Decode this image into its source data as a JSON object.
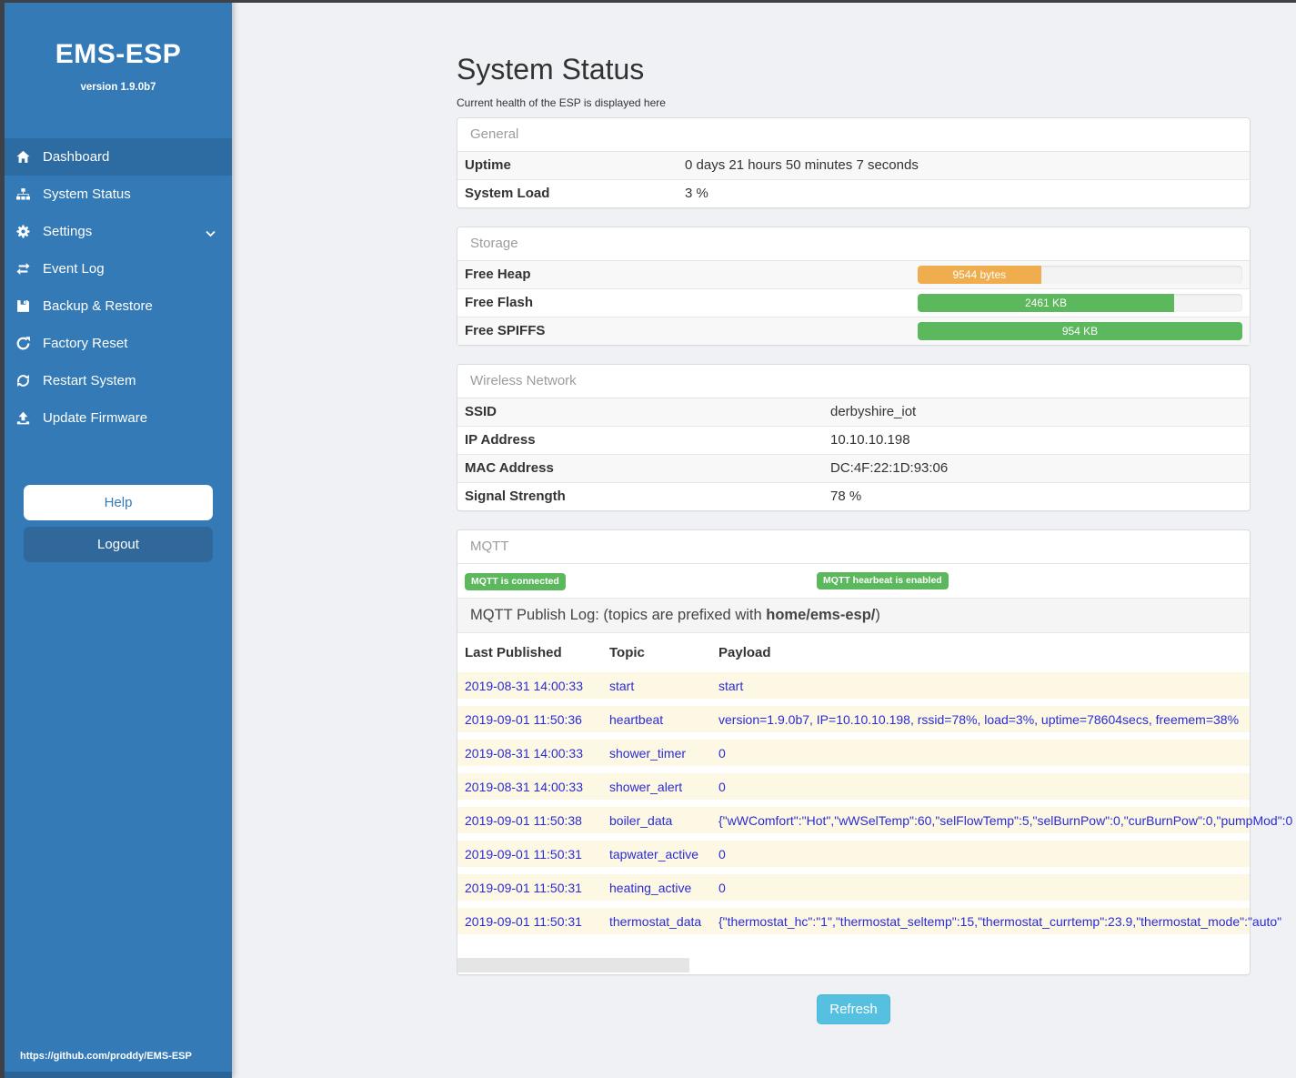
{
  "sidebar": {
    "title": "EMS-ESP",
    "version": "version 1.9.0b7",
    "nav": [
      {
        "label": "Dashboard",
        "icon": "home-icon",
        "active": true
      },
      {
        "label": "System Status",
        "icon": "sitemap-icon"
      },
      {
        "label": "Settings",
        "icon": "gear-icon",
        "chevron": true
      },
      {
        "label": "Event Log",
        "icon": "exchange-icon"
      },
      {
        "label": "Backup & Restore",
        "icon": "save-icon"
      },
      {
        "label": "Factory Reset",
        "icon": "repeat-icon"
      },
      {
        "label": "Restart System",
        "icon": "refresh-icon"
      },
      {
        "label": "Update Firmware",
        "icon": "upload-icon"
      }
    ],
    "help_label": "Help",
    "logout_label": "Logout",
    "footer_link": "https://github.com/proddy/EMS-ESP"
  },
  "page": {
    "title": "System Status",
    "subtitle": "Current health of the ESP is displayed here",
    "refresh_label": "Refresh"
  },
  "colors": {
    "sidebar": "#337ab7",
    "success": "#5cb85c",
    "warning": "#f0ad4e",
    "info": "#56c0e0",
    "log_text": "#2b2bd5",
    "log_row_bg": "#fcf8e3"
  },
  "panels": {
    "general": {
      "heading": "General",
      "rows": [
        {
          "label": "Uptime",
          "value": "0 days 21 hours 50 minutes 7 seconds"
        },
        {
          "label": "System Load",
          "value": "3 %"
        }
      ]
    },
    "storage": {
      "heading": "Storage",
      "rows": [
        {
          "label": "Free Heap",
          "bar_label": "9544 bytes",
          "percent": 38,
          "color": "#f0ad4e"
        },
        {
          "label": "Free Flash",
          "bar_label": "2461 KB",
          "percent": 79,
          "color": "#5cb85c"
        },
        {
          "label": "Free SPIFFS",
          "bar_label": "954 KB",
          "percent": 100,
          "color": "#5cb85c"
        }
      ]
    },
    "wireless": {
      "heading": "Wireless Network",
      "rows": [
        {
          "label": "SSID",
          "value": "derbyshire_iot"
        },
        {
          "label": "IP Address",
          "value": "10.10.10.198"
        },
        {
          "label": "MAC Address",
          "value": "DC:4F:22:1D:93:06"
        },
        {
          "label": "Signal Strength",
          "value": "78 %"
        }
      ]
    },
    "mqtt": {
      "heading": "MQTT",
      "badges": [
        "MQTT is connected",
        "MQTT hearbeat is enabled"
      ],
      "publish_log_normal": "MQTT Publish Log: (topics are prefixed with ",
      "publish_log_bold": "home/ems-esp/",
      "publish_log_suffix": ")",
      "columns": [
        "Last Published",
        "Topic",
        "Payload"
      ],
      "rows": [
        {
          "published": "2019-08-31 14:00:33",
          "topic": "start",
          "payload": "start"
        },
        {
          "published": "2019-09-01 11:50:36",
          "topic": "heartbeat",
          "payload": "version=1.9.0b7, IP=10.10.10.198, rssid=78%, load=3%, uptime=78604secs, freemem=38%"
        },
        {
          "published": "2019-08-31 14:00:33",
          "topic": "shower_timer",
          "payload": "0"
        },
        {
          "published": "2019-08-31 14:00:33",
          "topic": "shower_alert",
          "payload": "0"
        },
        {
          "published": "2019-09-01 11:50:38",
          "topic": "boiler_data",
          "payload": "{\"wWComfort\":\"Hot\",\"wWSelTemp\":60,\"selFlowTemp\":5,\"selBurnPow\":0,\"curBurnPow\":0,\"pumpMod\":0"
        },
        {
          "published": "2019-09-01 11:50:31",
          "topic": "tapwater_active",
          "payload": "0"
        },
        {
          "published": "2019-09-01 11:50:31",
          "topic": "heating_active",
          "payload": "0"
        },
        {
          "published": "2019-09-01 11:50:31",
          "topic": "thermostat_data",
          "payload": "{\"thermostat_hc\":\"1\",\"thermostat_seltemp\":15,\"thermostat_currtemp\":23.9,\"thermostat_mode\":\"auto\""
        }
      ]
    }
  }
}
